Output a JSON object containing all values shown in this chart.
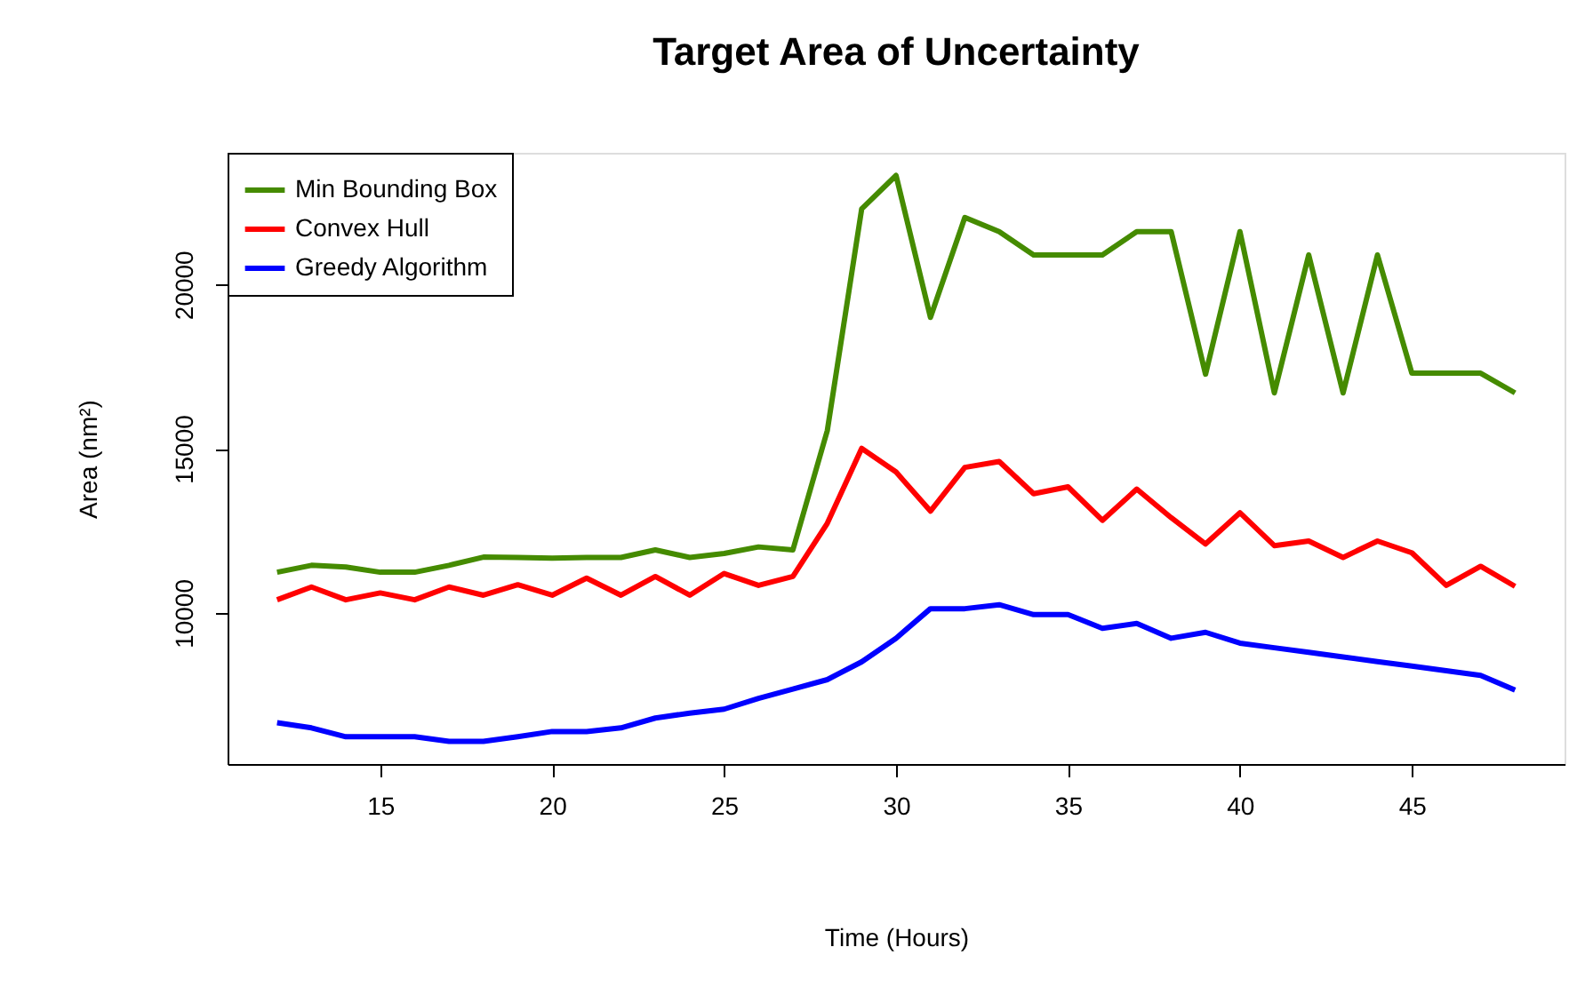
{
  "chart_data": {
    "type": "line",
    "title": "Target Area of Uncertainty",
    "xlabel": "Time (Hours)",
    "ylabel": "Area (nm²)",
    "x": [
      12,
      13,
      14,
      15,
      16,
      17,
      18,
      19,
      20,
      21,
      22,
      23,
      24,
      25,
      26,
      27,
      28,
      29,
      30,
      31,
      32,
      33,
      34,
      35,
      36,
      37,
      38,
      39,
      40,
      41,
      42,
      43,
      44,
      45,
      46,
      47,
      48
    ],
    "series": [
      {
        "name": "Min Bounding Box",
        "color": "#458b00",
        "values": [
          11240,
          11450,
          11400,
          11240,
          11240,
          11450,
          11700,
          11690,
          11670,
          11690,
          11690,
          11920,
          11690,
          11810,
          12010,
          11920,
          15550,
          22300,
          23320,
          19000,
          22040,
          21610,
          20900,
          20900,
          20900,
          21610,
          21610,
          17270,
          21610,
          16700,
          20900,
          16700,
          20900,
          17300,
          17300,
          17300,
          16700
        ]
      },
      {
        "name": "Convex Hull",
        "color": "#ff0000",
        "values": [
          10400,
          10790,
          10400,
          10610,
          10400,
          10790,
          10540,
          10860,
          10540,
          11060,
          10540,
          11110,
          10540,
          11200,
          10840,
          11110,
          12730,
          15010,
          14290,
          13100,
          14430,
          14610,
          13630,
          13840,
          12820,
          13770,
          12900,
          12100,
          13050,
          12050,
          12190,
          11690,
          12190,
          11830,
          10840,
          11420,
          10810
        ]
      },
      {
        "name": "Greedy Algorithm",
        "color": "#0000ff",
        "values": [
          6660,
          6500,
          6230,
          6230,
          6230,
          6090,
          6090,
          6230,
          6390,
          6390,
          6500,
          6800,
          6950,
          7070,
          7400,
          7680,
          7970,
          8510,
          9230,
          10130,
          10130,
          10250,
          9950,
          9950,
          9530,
          9680,
          9230,
          9410,
          9080,
          8940,
          8800,
          8660,
          8520,
          8380,
          8240,
          8100,
          7650
        ]
      }
    ],
    "xlim": [
      10.56,
      49.44
    ],
    "ylim": [
      5400,
      24010
    ],
    "xticks": [
      15,
      20,
      25,
      30,
      35,
      40,
      45
    ],
    "yticks": [
      10000,
      15000,
      20000
    ],
    "legend": "top left",
    "grid": false,
    "line_style": "solid",
    "marker": "none"
  }
}
